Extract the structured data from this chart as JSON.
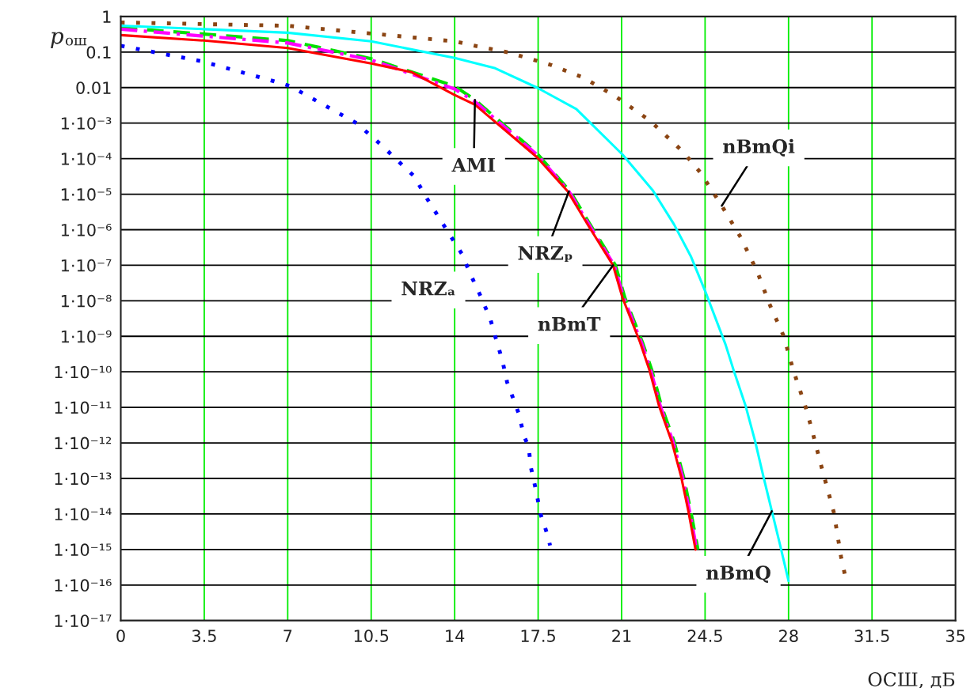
{
  "chart_data": {
    "type": "line",
    "xlabel": "ОСШ, дБ",
    "ylabel": "pош",
    "log": "y",
    "grid": true,
    "xlim": [
      0,
      35
    ],
    "xticks": [
      0,
      3.5,
      7,
      10.5,
      14,
      17.5,
      21,
      24.5,
      28,
      31.5,
      35
    ],
    "ylim": [
      1e-17,
      1
    ],
    "yticks": [
      {
        "value": 1,
        "label": "1"
      },
      {
        "value": 0.1,
        "label": "0.1"
      },
      {
        "value": 0.01,
        "label": "0.01"
      },
      {
        "value": 0.001,
        "label": "1·10⁻³"
      },
      {
        "value": 0.0001,
        "label": "1·10⁻⁴"
      },
      {
        "value": 1e-05,
        "label": "1·10⁻⁵"
      },
      {
        "value": 1e-06,
        "label": "1·10⁻⁶"
      },
      {
        "value": 1e-07,
        "label": "1·10⁻⁷"
      },
      {
        "value": 1e-08,
        "label": "1·10⁻⁸"
      },
      {
        "value": 1e-09,
        "label": "1·10⁻⁹"
      },
      {
        "value": 1e-10,
        "label": "1·10⁻¹⁰"
      },
      {
        "value": 1e-11,
        "label": "1·10⁻¹¹"
      },
      {
        "value": 1e-12,
        "label": "1·10⁻¹²"
      },
      {
        "value": 1e-13,
        "label": "1·10⁻¹³"
      },
      {
        "value": 1e-14,
        "label": "1·10⁻¹⁴"
      },
      {
        "value": 1e-15,
        "label": "1·10⁻¹⁵"
      },
      {
        "value": 1e-16,
        "label": "1·10⁻¹⁶"
      },
      {
        "value": 1e-17,
        "label": "1·10⁻¹⁷"
      }
    ],
    "series": [
      {
        "name": "NRZₐ",
        "color": "#0000ff",
        "line_style": "dotted",
        "x": [
          0,
          3.4,
          6.6,
          7.1,
          9.9,
          10.9,
          11.4,
          12.3,
          12.8,
          13.7,
          14.3,
          14.7,
          15.1,
          15.5,
          15.7,
          16.0,
          16.2,
          16.55,
          16.7,
          16.9,
          17.1,
          17.2,
          17.4,
          17.6,
          17.9,
          18.0
        ],
        "values": [
          0.15,
          0.055,
          0.014,
          0.011,
          0.00098,
          0.00025,
          0.00012,
          3.2e-05,
          8.3e-06,
          9.1e-07,
          2.1e-07,
          4.9e-08,
          1.3e-08,
          3e-09,
          1e-09,
          2.1e-10,
          5.1e-11,
          1.2e-11,
          6.3e-12,
          1.6e-12,
          7.9e-13,
          2e-13,
          5e-14,
          1e-14,
          2.5e-15,
          1.3e-15
        ]
      },
      {
        "name": "AMI",
        "color": "#00e000",
        "line_style": "dashed",
        "x": [
          0,
          3.5,
          7,
          10.5,
          14,
          14.85,
          17.45,
          18.84,
          19.74,
          20.74,
          21.14,
          21.87,
          22.27,
          22.67,
          23.2,
          23.6,
          23.9,
          24.2
        ],
        "values": [
          0.48,
          0.32,
          0.21,
          0.065,
          0.011,
          0.0045,
          0.00014,
          1.2e-05,
          1.2e-06,
          1e-07,
          1.2e-08,
          6.9e-10,
          1.1e-10,
          1.1e-11,
          1.1e-12,
          1.1e-13,
          1.2e-14,
          1e-15
        ]
      },
      {
        "name": "NRZₚ",
        "color": "#ff00ff",
        "line_style": "dashdot",
        "x": [
          0,
          3.5,
          7,
          10.5,
          14,
          14.85,
          17.45,
          18.79,
          19.69,
          20.69,
          21.09,
          21.82,
          22.22,
          22.62,
          23.15,
          23.55,
          23.85,
          24.15
        ],
        "values": [
          0.44,
          0.28,
          0.18,
          0.06,
          0.0091,
          0.004,
          0.00013,
          1.2e-05,
          1.2e-06,
          1e-07,
          1.2e-08,
          6.9e-10,
          1.1e-10,
          1.1e-11,
          1.1e-12,
          1.1e-13,
          1.2e-14,
          1e-15
        ]
      },
      {
        "name": "nBmT",
        "color": "#ff0000",
        "line_style": "solid",
        "x": [
          0,
          3.5,
          7,
          10.5,
          12.2,
          14,
          14.85,
          17.45,
          18.74,
          19.64,
          20.64,
          21.04,
          21.77,
          22.17,
          22.57,
          23.1,
          23.5,
          23.8,
          24.1
        ],
        "values": [
          0.3,
          0.21,
          0.13,
          0.048,
          0.027,
          0.0062,
          0.0033,
          0.00011,
          1.2e-05,
          1.2e-06,
          1e-07,
          1.2e-08,
          6.9e-10,
          1.1e-10,
          1.1e-11,
          1.1e-12,
          1.1e-13,
          1.2e-14,
          1e-15
        ]
      },
      {
        "name": "nBmQ",
        "color": "#00ffff",
        "line_style": "solid",
        "x": [
          0,
          3.5,
          7,
          10.5,
          14,
          15.7,
          17.45,
          19.1,
          21.04,
          22.3,
          23.2,
          23.9,
          24.5,
          25.36,
          25.7,
          26.2,
          26.6,
          26.95,
          27.3,
          27.65,
          28.0
        ],
        "values": [
          0.55,
          0.44,
          0.35,
          0.2,
          0.068,
          0.035,
          0.01,
          0.0025,
          0.00013,
          1.3e-05,
          1.4e-06,
          1.8e-07,
          1.9e-08,
          5.8e-10,
          1.1e-10,
          1.1e-11,
          1.1e-12,
          1.1e-13,
          1.2e-14,
          1.3e-15,
          1.3e-16
        ]
      },
      {
        "name": "nBmQi",
        "color": "#8b4513",
        "line_style": "dotted",
        "x": [
          0,
          7,
          14,
          14.85,
          16.25,
          18.05,
          19.4,
          20.77,
          22.17,
          23.56,
          24.3,
          25.2,
          26.0,
          26.7,
          27.2,
          27.8,
          28.2,
          28.7,
          28.95,
          29.4,
          29.9,
          30.2,
          30.4
        ],
        "values": [
          0.68,
          0.55,
          0.2,
          0.15,
          0.098,
          0.043,
          0.019,
          0.0055,
          0.0012,
          0.00016,
          4.1e-05,
          4.7e-06,
          6e-07,
          6.3e-08,
          8.1e-09,
          1e-09,
          1.1e-10,
          1.1e-11,
          2.8e-12,
          1.9e-13,
          1.1e-14,
          6.3e-16,
          1.5e-16
        ]
      }
    ]
  }
}
